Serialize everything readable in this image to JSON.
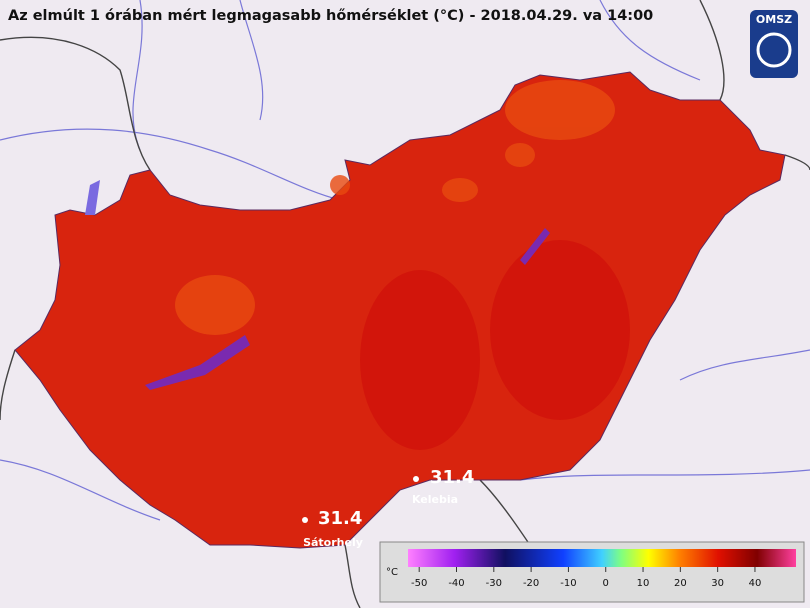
{
  "header": {
    "title": "Az elmúlt 1 órában mért legmagasabb hőmérséklet (°C) - 2018.04.29. va 14:00",
    "logo": "OMSZ"
  },
  "stations": [
    {
      "value": 31.4,
      "name": "Kelebia"
    },
    {
      "value": 31.4,
      "name": "Sátorhely"
    }
  ],
  "colorbar": {
    "unit": "°C",
    "lim": [
      -53,
      51
    ],
    "ticks": [
      -50,
      -40,
      -30,
      -20,
      -10,
      0,
      10,
      20,
      30,
      40
    ]
  }
}
